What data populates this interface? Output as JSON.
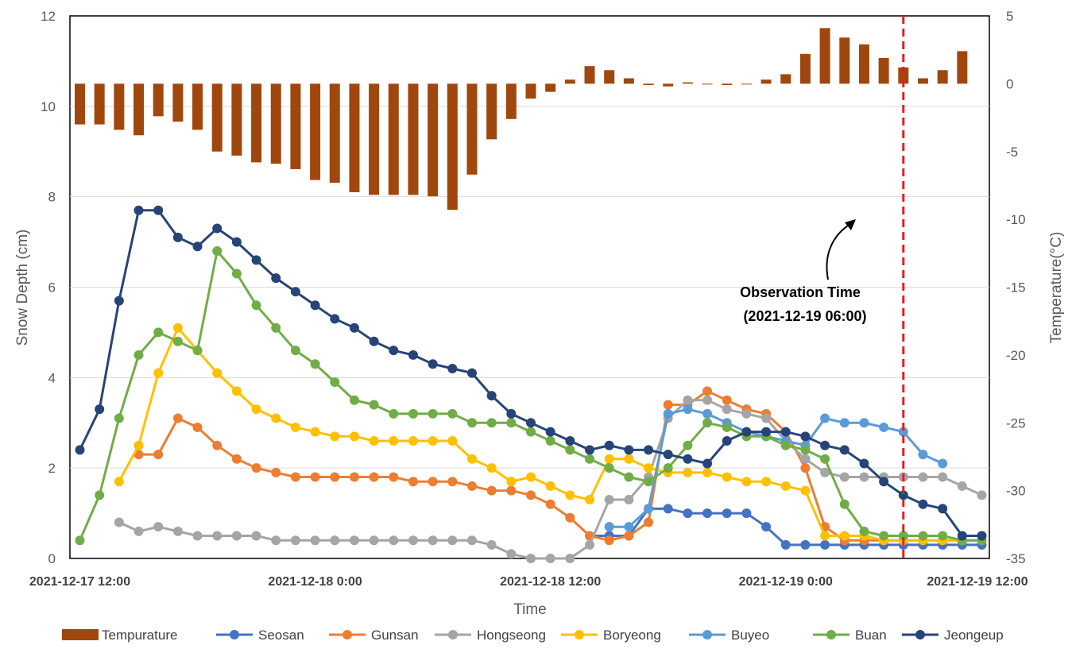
{
  "chart_data": {
    "type": "line+bar",
    "title": "",
    "xlabel": "Time",
    "ylabel_left": "Snow Depth (cm)",
    "ylabel_right": "Temperature(°C)",
    "ylim_left": [
      0,
      12
    ],
    "ylim_right": [
      -35,
      5
    ],
    "left_ticks": [
      "0",
      "2",
      "4",
      "6",
      "8",
      "10",
      "12"
    ],
    "right_ticks": [
      "5",
      "0",
      "-5",
      "-10",
      "-15",
      "-20",
      "-25",
      "-30",
      "-35"
    ],
    "x_tick_labels": [
      "2021-12-17 12:00",
      "2021-12-18 0:00",
      "2021-12-18 12:00",
      "2021-12-19 0:00",
      "2021-12-19 12:00"
    ],
    "grid": true,
    "legend_position": "bottom",
    "hours_from_start": [
      0,
      1,
      2,
      3,
      4,
      5,
      6,
      7,
      8,
      9,
      10,
      11,
      12,
      13,
      14,
      15,
      16,
      17,
      18,
      19,
      20,
      21,
      22,
      23,
      24,
      25,
      26,
      27,
      28,
      29,
      30,
      31,
      32,
      33,
      34,
      35,
      36,
      37,
      38,
      39,
      40,
      41,
      42,
      43,
      44,
      45,
      46
    ],
    "temperature": {
      "name": "Tempurature",
      "color": "#A0470E",
      "values": [
        -3,
        -3,
        -3.4,
        -3.8,
        -2.4,
        -2.8,
        -3.4,
        -5,
        -5.3,
        -5.8,
        -5.9,
        -6.3,
        -7.1,
        -7.3,
        -8,
        -8.2,
        -8.2,
        -8.2,
        -8.3,
        -9.3,
        -6.7,
        -4.1,
        -2.6,
        -1.1,
        -0.6,
        0.3,
        1.3,
        1,
        0.4,
        -0.1,
        -0.2,
        0.1,
        0,
        -0.1,
        0,
        0.3,
        0.7,
        2.2,
        4.1,
        3.4,
        2.9,
        1.9,
        1.2,
        0.4,
        1,
        2.4,
        null
      ]
    },
    "series": [
      {
        "name": "Seosan",
        "color": "#4472C4",
        "values": [
          null,
          null,
          null,
          null,
          null,
          null,
          null,
          null,
          null,
          null,
          null,
          null,
          null,
          null,
          null,
          null,
          null,
          null,
          null,
          null,
          null,
          null,
          null,
          null,
          null,
          null,
          0.5,
          0.5,
          0.5,
          1.1,
          1.1,
          1,
          1,
          1,
          1,
          0.7,
          0.3,
          0.3,
          0.3,
          0.3,
          0.3,
          0.3,
          0.3,
          0.3,
          0.3,
          0.3,
          0.3
        ]
      },
      {
        "name": "Gunsan",
        "color": "#ED7D31",
        "values": [
          null,
          null,
          null,
          2.3,
          2.3,
          3.1,
          2.9,
          2.5,
          2.2,
          2,
          1.9,
          1.8,
          1.8,
          1.8,
          1.8,
          1.8,
          1.8,
          1.7,
          1.7,
          1.7,
          1.6,
          1.5,
          1.5,
          1.4,
          1.2,
          0.9,
          0.5,
          0.4,
          0.5,
          0.8,
          3.4,
          3.4,
          3.7,
          3.5,
          3.3,
          3.2,
          2.8,
          2,
          0.7,
          0.4,
          0.4,
          0.4,
          0.4,
          0.4,
          0.4,
          0.4,
          0.4
        ]
      },
      {
        "name": "Hongseong",
        "color": "#A5A5A5",
        "values": [
          null,
          null,
          0.8,
          0.6,
          0.7,
          0.6,
          0.5,
          0.5,
          0.5,
          0.5,
          0.4,
          0.4,
          0.4,
          0.4,
          0.4,
          0.4,
          0.4,
          0.4,
          0.4,
          0.4,
          0.4,
          0.3,
          0.1,
          0,
          0,
          0,
          0.3,
          1.3,
          1.3,
          1.8,
          3.1,
          3.5,
          3.5,
          3.3,
          3.2,
          3.1,
          2.6,
          2.2,
          1.9,
          1.8,
          1.8,
          1.8,
          1.8,
          1.8,
          1.8,
          1.6,
          1.4
        ]
      },
      {
        "name": "Boryeong",
        "color": "#FFC000",
        "values": [
          null,
          null,
          1.7,
          2.5,
          4.1,
          5.1,
          4.6,
          4.1,
          3.7,
          3.3,
          3.1,
          2.9,
          2.8,
          2.7,
          2.7,
          2.6,
          2.6,
          2.6,
          2.6,
          2.6,
          2.2,
          2,
          1.7,
          1.8,
          1.6,
          1.4,
          1.3,
          2.2,
          2.2,
          2,
          1.9,
          1.9,
          1.9,
          1.8,
          1.7,
          1.7,
          1.6,
          1.5,
          0.5,
          0.5,
          0.5,
          0.4,
          0.4,
          0.4,
          0.4,
          0.4,
          0.4
        ]
      },
      {
        "name": "Buyeo",
        "color": "#5B9BD5",
        "values": [
          null,
          null,
          null,
          null,
          null,
          null,
          null,
          null,
          null,
          null,
          null,
          null,
          null,
          null,
          null,
          null,
          null,
          null,
          null,
          null,
          null,
          null,
          null,
          null,
          null,
          null,
          null,
          0.7,
          0.7,
          1.1,
          3.2,
          3.3,
          3.2,
          3,
          2.8,
          2.7,
          2.6,
          2.5,
          3.1,
          3,
          3,
          2.9,
          2.8,
          2.3,
          2.1,
          null,
          null
        ]
      },
      {
        "name": "Buan",
        "color": "#70AD47",
        "values": [
          0.4,
          1.4,
          3.1,
          4.5,
          5,
          4.8,
          4.6,
          6.8,
          6.3,
          5.6,
          5.1,
          4.6,
          4.3,
          3.9,
          3.5,
          3.4,
          3.2,
          3.2,
          3.2,
          3.2,
          3,
          3,
          3,
          2.8,
          2.6,
          2.4,
          2.2,
          2,
          1.8,
          1.7,
          2,
          2.5,
          3,
          2.9,
          2.7,
          2.7,
          2.5,
          2.4,
          2.2,
          1.2,
          0.6,
          0.5,
          0.5,
          0.5,
          0.5,
          0.4,
          0.4
        ]
      },
      {
        "name": "Jeongeup",
        "color": "#264478",
        "values": [
          2.4,
          3.3,
          5.7,
          7.7,
          7.7,
          7.1,
          6.9,
          7.3,
          7,
          6.6,
          6.2,
          5.9,
          5.6,
          5.3,
          5.1,
          4.8,
          4.6,
          4.5,
          4.3,
          4.2,
          4.1,
          3.6,
          3.2,
          3,
          2.8,
          2.6,
          2.4,
          2.5,
          2.4,
          2.4,
          2.3,
          2.2,
          2.1,
          2.6,
          2.8,
          2.8,
          2.8,
          2.7,
          2.5,
          2.4,
          2.1,
          1.7,
          1.4,
          1.2,
          1.1,
          0.5,
          0.5
        ]
      }
    ],
    "observation_line_hour": 42,
    "annotation": {
      "line1": "Observation Time",
      "line2": "(2021-12-19 06:00)"
    }
  }
}
